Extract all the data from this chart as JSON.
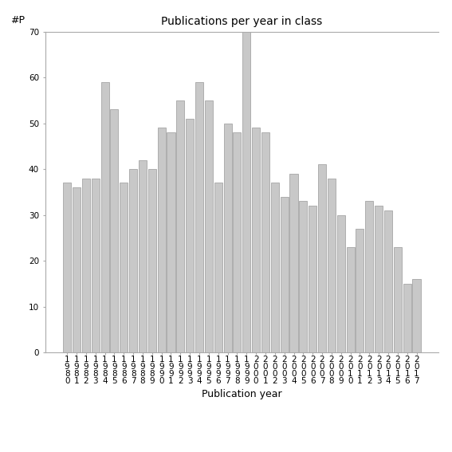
{
  "title": "Publications per year in class",
  "xlabel": "Publication year",
  "ylabel": "#P",
  "years": [
    "1980",
    "1981",
    "1982",
    "1983",
    "1984",
    "1985",
    "1986",
    "1987",
    "1988",
    "1989",
    "1990",
    "1991",
    "1992",
    "1993",
    "1994",
    "1995",
    "1996",
    "1997",
    "1998",
    "1999",
    "2000",
    "2001",
    "2002",
    "2003",
    "2004",
    "2005",
    "2006",
    "2007",
    "2008",
    "2009",
    "2010",
    "2011",
    "2012",
    "2013",
    "2014",
    "2015",
    "2016",
    "2017"
  ],
  "values": [
    37,
    36,
    38,
    38,
    59,
    53,
    37,
    40,
    42,
    40,
    49,
    48,
    55,
    51,
    59,
    55,
    37,
    50,
    48,
    70,
    49,
    48,
    37,
    34,
    39,
    33,
    32,
    41,
    38,
    30,
    23,
    27,
    33,
    32,
    31,
    23,
    15,
    16
  ],
  "bar_color": "#c8c8c8",
  "bar_edge_color": "#999999",
  "ylim": [
    0,
    70
  ],
  "yticks": [
    0,
    10,
    20,
    30,
    40,
    50,
    60,
    70
  ],
  "background_color": "#ffffff",
  "title_fontsize": 10,
  "axis_label_fontsize": 9,
  "tick_fontsize": 7.5
}
